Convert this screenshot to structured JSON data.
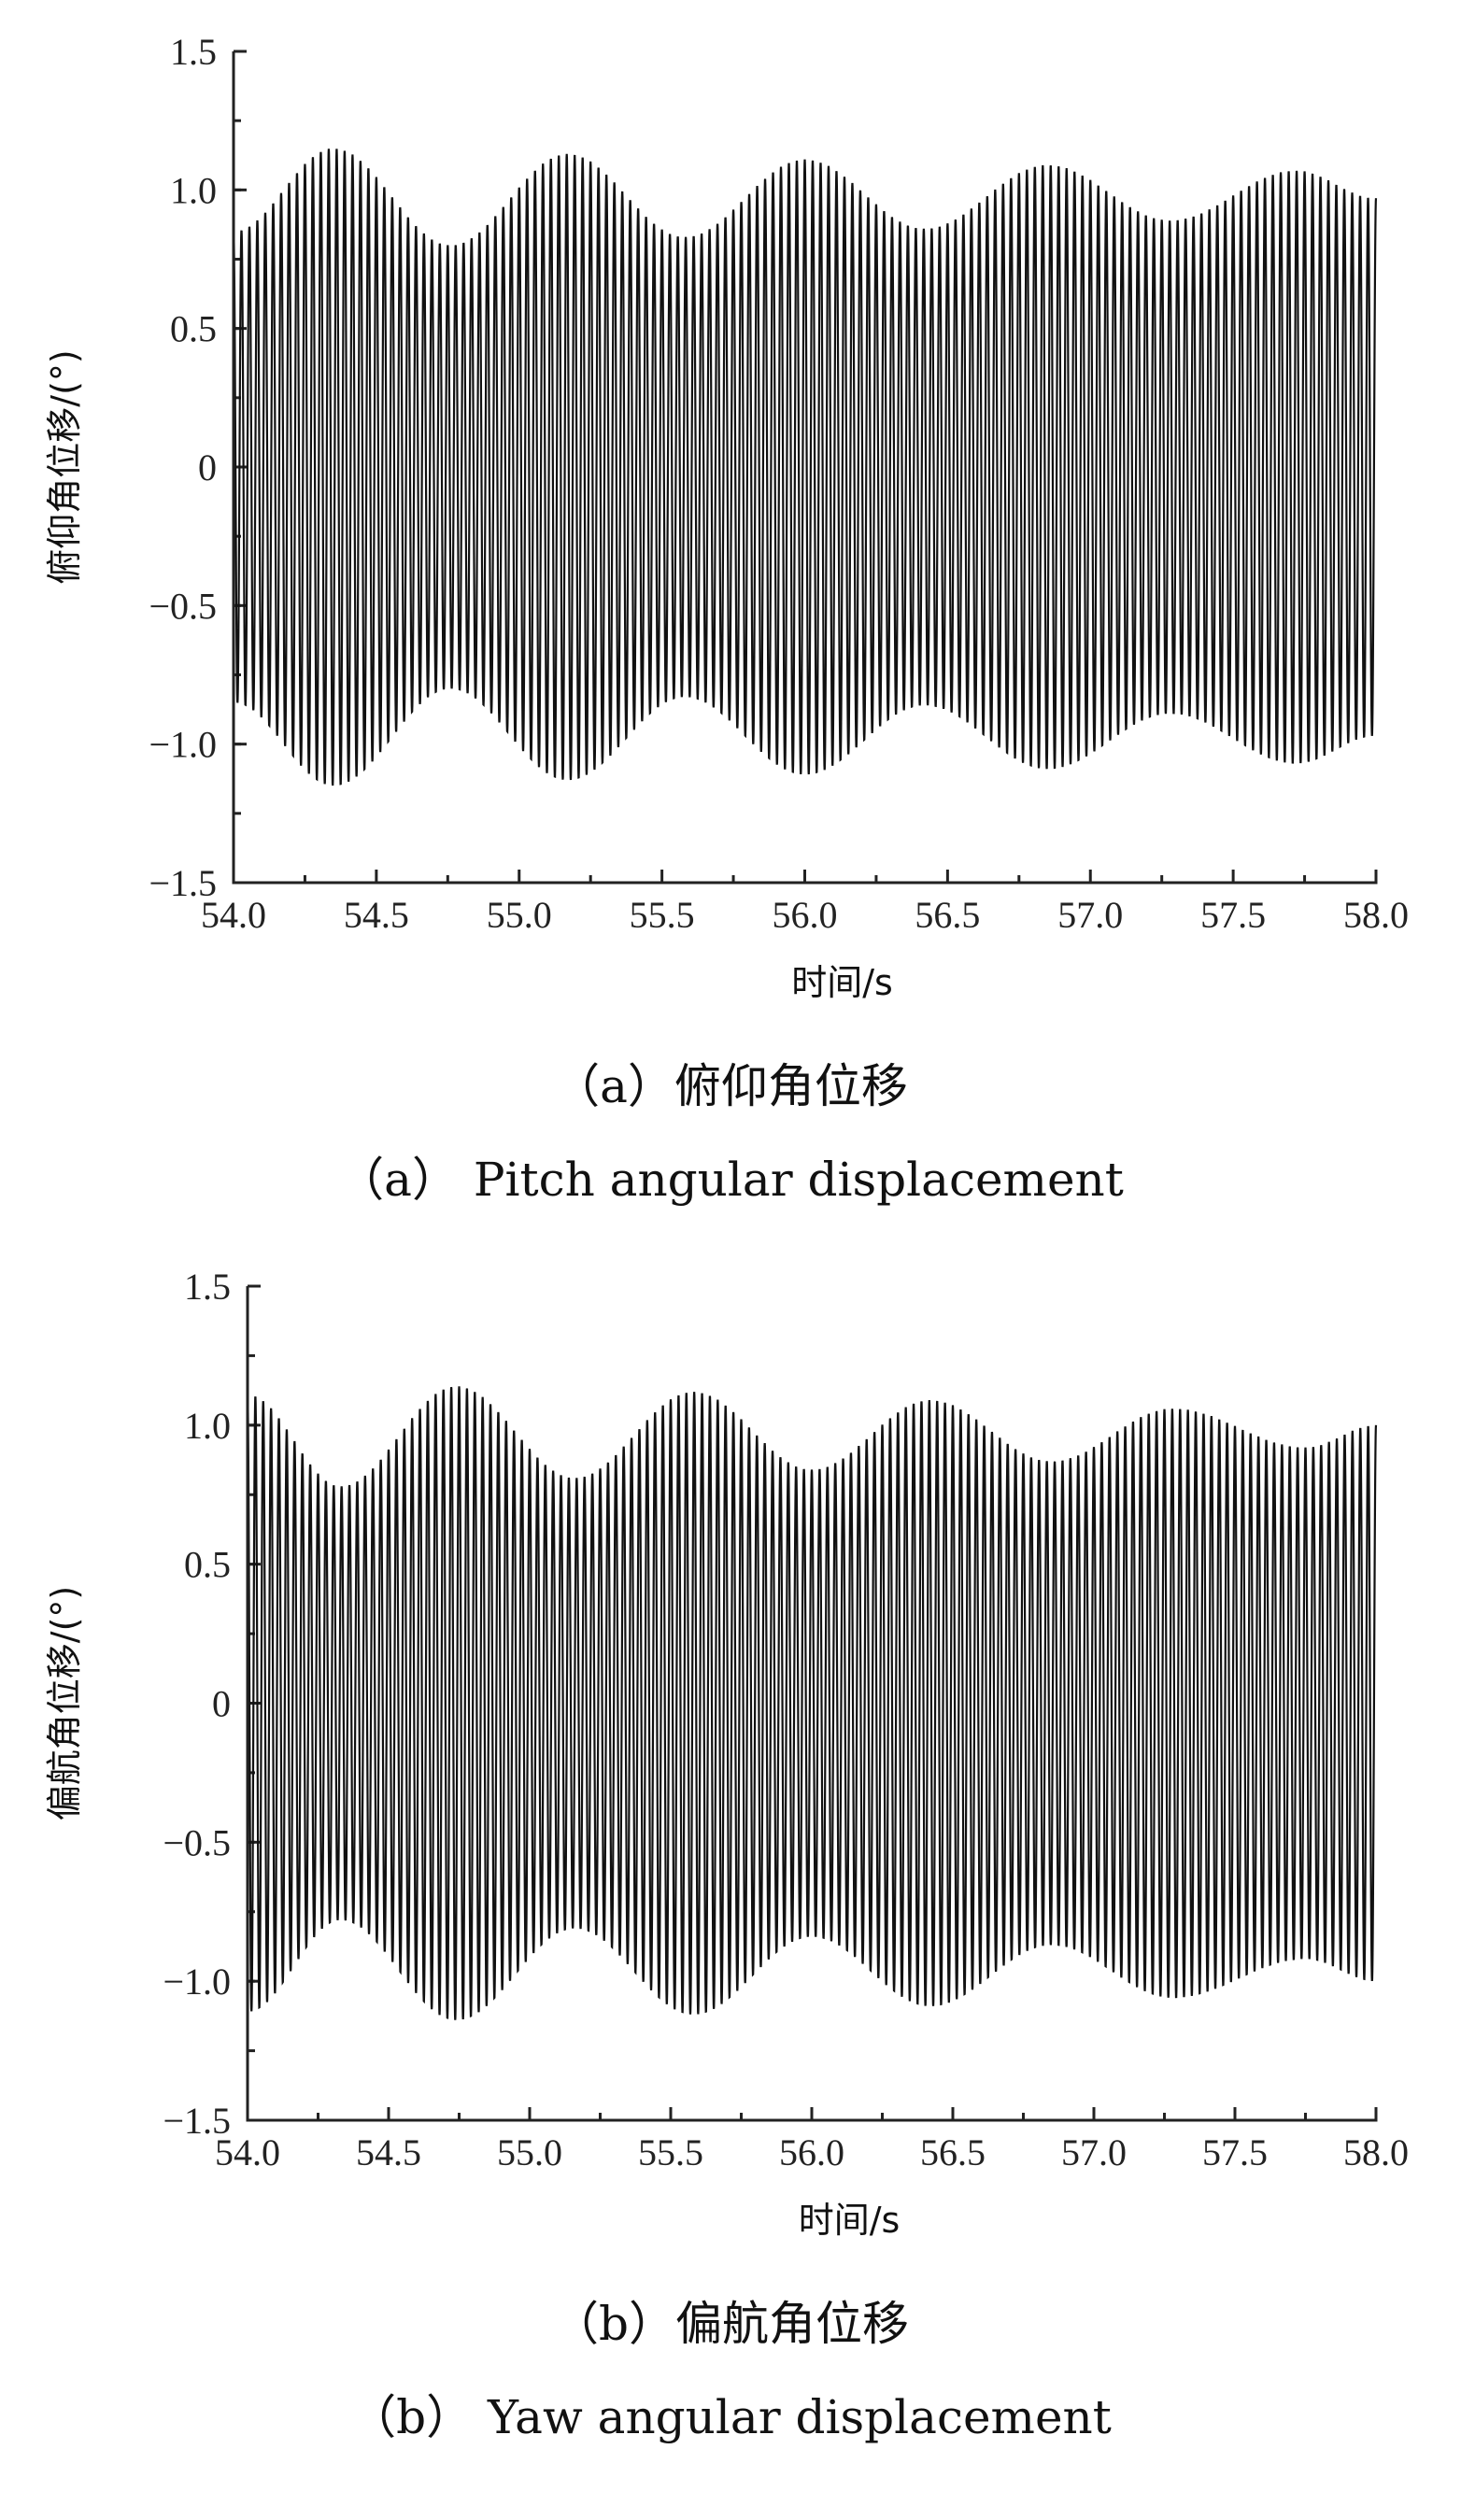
{
  "chart_data": [
    {
      "type": "line",
      "panel": "a",
      "xlabel": "时间/s",
      "ylabel": "俯仰角位移/(°)",
      "caption_cn": "（a）俯仰角位移",
      "caption_en": "（a） Pitch angular displacement",
      "xlim": [
        54.0,
        58.0
      ],
      "ylim": [
        -1.5,
        1.5
      ],
      "xticks": [
        "54.0",
        "54.5",
        "55.0",
        "55.5",
        "56.0",
        "56.5",
        "57.0",
        "57.5",
        "58.0"
      ],
      "yticks": [
        "1.5",
        "1.0",
        "0.5",
        "0",
        "−0.5",
        "−1.0",
        "−1.5"
      ],
      "series": [
        {
          "envelope_peaks": [
            {
              "x": 54.35,
              "y": 1.15
            },
            {
              "x": 55.17,
              "y": 1.13
            },
            {
              "x": 56.0,
              "y": 1.11
            },
            {
              "x": 56.85,
              "y": 1.09
            },
            {
              "x": 57.72,
              "y": 1.07
            }
          ],
          "envelope_troughs": [
            {
              "x": 54.76,
              "y": 0.8
            },
            {
              "x": 55.58,
              "y": 0.83
            },
            {
              "x": 56.42,
              "y": 0.86
            },
            {
              "x": 57.28,
              "y": 0.89
            }
          ],
          "start_amplitude": 0.85,
          "end_amplitude": 0.97,
          "oscillation_frequency_hz": 36
        }
      ]
    },
    {
      "type": "line",
      "panel": "b",
      "xlabel": "时间/s",
      "ylabel": "偏航角位移/(°)",
      "caption_cn": "（b）偏航角位移",
      "caption_en": "（b） Yaw angular displacement",
      "xlim": [
        54.0,
        58.0
      ],
      "ylim": [
        -1.5,
        1.5
      ],
      "xticks": [
        "54.0",
        "54.5",
        "55.0",
        "55.5",
        "56.0",
        "56.5",
        "57.0",
        "57.5",
        "58.0"
      ],
      "yticks": [
        "1.5",
        "1.0",
        "0.5",
        "0",
        "−0.5",
        "−1.0",
        "−1.5"
      ],
      "series": [
        {
          "envelope_peaks": [
            {
              "x": 54.0,
              "y": 1.11
            },
            {
              "x": 54.74,
              "y": 1.14
            },
            {
              "x": 55.58,
              "y": 1.12
            },
            {
              "x": 56.42,
              "y": 1.09
            },
            {
              "x": 57.28,
              "y": 1.06
            }
          ],
          "envelope_troughs": [
            {
              "x": 54.33,
              "y": 0.78
            },
            {
              "x": 55.16,
              "y": 0.81
            },
            {
              "x": 56.0,
              "y": 0.84
            },
            {
              "x": 56.85,
              "y": 0.87
            },
            {
              "x": 57.75,
              "y": 0.92
            }
          ],
          "start_amplitude": 1.11,
          "end_amplitude": 1.0,
          "oscillation_frequency_hz": 36
        }
      ]
    }
  ]
}
